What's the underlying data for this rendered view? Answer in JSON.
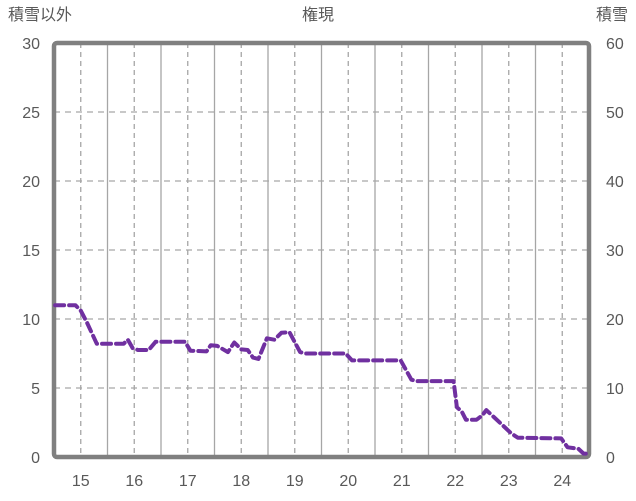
{
  "title": "権現",
  "top_labels": {
    "left": "積雪以外",
    "center": "権現",
    "right": "積雪"
  },
  "left_axis": {
    "label": "積雪以外",
    "ticks": [
      "30",
      "25",
      "20",
      "15",
      "10",
      "5",
      "0"
    ],
    "min": 0,
    "max": 30
  },
  "right_axis": {
    "label": "積雪",
    "ticks": [
      "60",
      "50",
      "40",
      "30",
      "20",
      "10",
      "0"
    ],
    "min": 0,
    "max": 60
  },
  "x_axis": {
    "ticks": [
      "15",
      "16",
      "17",
      "18",
      "19",
      "20",
      "21",
      "22",
      "23",
      "24"
    ],
    "min": 14.5,
    "max": 24.5
  },
  "colors": {
    "series": "#7030A0",
    "grid": "#A6A6A6",
    "border": "#808080",
    "text": "#595959",
    "background": "#FFFFFF"
  },
  "chart_data": {
    "type": "line",
    "title": "権現",
    "ylabel_left": "積雪以外",
    "ylabel_right": "積雪",
    "x_range": [
      14.5,
      24.5
    ],
    "y_left_range": [
      0,
      30
    ],
    "y_right_range": [
      0,
      60
    ],
    "x_tick_values": [
      15,
      16,
      17,
      18,
      19,
      20,
      21,
      22,
      23,
      24
    ],
    "y_left_tick_values": [
      0,
      5,
      10,
      15,
      20,
      25,
      30
    ],
    "y_right_tick_values": [
      0,
      10,
      20,
      30,
      40,
      50,
      60
    ],
    "grid": {
      "horizontal": "dashed",
      "vertical_day_boundaries": "solid",
      "vertical_day_centers": "dashed"
    },
    "legend": "none",
    "series": [
      {
        "name": "積雪以外",
        "axis": "left",
        "style": "dashed",
        "color": "#7030A0",
        "points": [
          [
            14.52,
            11
          ],
          [
            14.9,
            11
          ],
          [
            15.0,
            10.6
          ],
          [
            15.12,
            9.7
          ],
          [
            15.3,
            8.2
          ],
          [
            15.8,
            8.2
          ],
          [
            15.88,
            8.5
          ],
          [
            15.97,
            7.9
          ],
          [
            16.07,
            7.75
          ],
          [
            16.27,
            7.75
          ],
          [
            16.4,
            8.35
          ],
          [
            16.95,
            8.35
          ],
          [
            17.05,
            7.7
          ],
          [
            17.35,
            7.65
          ],
          [
            17.43,
            8.1
          ],
          [
            17.55,
            8.05
          ],
          [
            17.75,
            7.6
          ],
          [
            17.87,
            8.3
          ],
          [
            18.0,
            7.8
          ],
          [
            18.12,
            7.75
          ],
          [
            18.22,
            7.2
          ],
          [
            18.32,
            7.1
          ],
          [
            18.48,
            8.6
          ],
          [
            18.62,
            8.5
          ],
          [
            18.75,
            9.0
          ],
          [
            18.9,
            9.05
          ],
          [
            19.1,
            7.6
          ],
          [
            19.2,
            7.5
          ],
          [
            19.95,
            7.5
          ],
          [
            20.07,
            7.0
          ],
          [
            20.98,
            7.0
          ],
          [
            21.18,
            5.6
          ],
          [
            21.27,
            5.5
          ],
          [
            21.97,
            5.5
          ],
          [
            22.03,
            3.6
          ],
          [
            22.12,
            3.3
          ],
          [
            22.2,
            2.7
          ],
          [
            22.4,
            2.7
          ],
          [
            22.5,
            3.0
          ],
          [
            22.58,
            3.4
          ],
          [
            22.72,
            2.9
          ],
          [
            23.05,
            1.7
          ],
          [
            23.17,
            1.4
          ],
          [
            23.98,
            1.35
          ],
          [
            24.1,
            0.7
          ],
          [
            24.3,
            0.6
          ],
          [
            24.4,
            0.25
          ],
          [
            24.48,
            0.25
          ]
        ]
      }
    ]
  }
}
